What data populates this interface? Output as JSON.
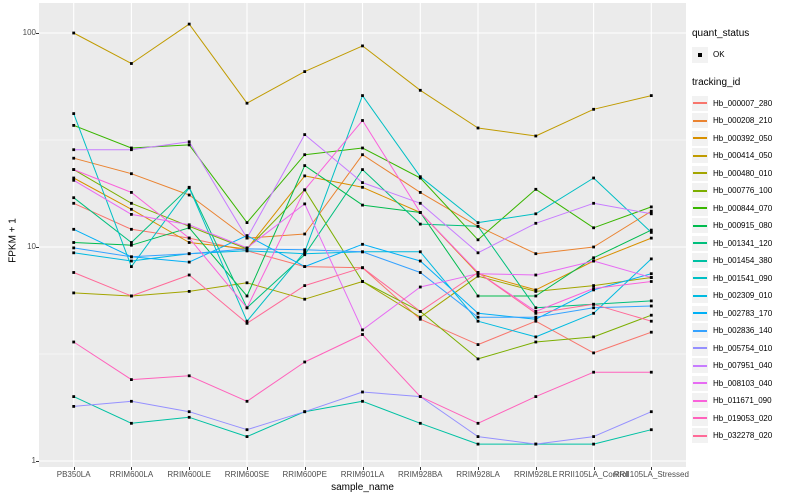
{
  "chart_data": {
    "type": "line",
    "title": "",
    "xlabel": "sample_name",
    "ylabel": "FPKM + 1",
    "y_scale": "log10",
    "y_ticks": [
      1,
      10,
      100
    ],
    "y_minor_ticks": [
      3.162,
      31.62
    ],
    "ylim_log10": [
      -0.03,
      2.14
    ],
    "grid": "white major+minor on gray panel",
    "legend_position": "right",
    "marker": "small black square on every point",
    "categories": [
      "PB350LA",
      "RRIM600LA",
      "RRIM600LE",
      "RRIM600SE",
      "RRIM600PE",
      "RRIM901LA",
      "RRIM928BA",
      "RRIM928LA",
      "RRIM928LE",
      "RRII105LA_Control",
      "RRII105LA_Stressed"
    ],
    "series": [
      {
        "name": "Hb_000007_280",
        "color": "#F8766D",
        "values": [
          16.0,
          12.1,
          11.0,
          9.6,
          8.1,
          8.0,
          4.6,
          3.5,
          4.5,
          3.2,
          4.0
        ]
      },
      {
        "name": "Hb_000208_210",
        "color": "#EA8331",
        "values": [
          26.0,
          22.0,
          17.5,
          11.0,
          11.5,
          27.0,
          18.0,
          12.5,
          9.3,
          10.0,
          14.7
        ]
      },
      {
        "name": "Hb_000392_050",
        "color": "#D89000",
        "values": [
          21.0,
          15.0,
          10.5,
          9.8,
          21.5,
          19.0,
          14.5,
          7.5,
          6.3,
          8.6,
          11.0
        ]
      },
      {
        "name": "Hb_000414_050",
        "color": "#C09B00",
        "values": [
          100,
          72,
          110,
          47,
          66,
          87,
          54,
          36,
          33,
          44,
          51
        ]
      },
      {
        "name": "Hb_000480_010",
        "color": "#A3A500",
        "values": [
          6.1,
          5.9,
          6.2,
          6.8,
          5.7,
          6.9,
          4.7,
          7.3,
          6.2,
          6.6,
          7.2
        ]
      },
      {
        "name": "Hb_000776_100",
        "color": "#7CAE00",
        "values": [
          23.0,
          16.0,
          12.5,
          9.8,
          18.5,
          6.9,
          5.0,
          3.0,
          3.6,
          3.8,
          4.8
        ]
      },
      {
        "name": "Hb_000844_070",
        "color": "#39B600",
        "values": [
          37.0,
          29.0,
          30.0,
          13.0,
          27.0,
          29.0,
          21.0,
          10.8,
          18.6,
          12.3,
          15.4
        ]
      },
      {
        "name": "Hb_000915_080",
        "color": "#00BB4E",
        "values": [
          10.5,
          10.2,
          12.3,
          5.9,
          24.0,
          15.7,
          14.5,
          5.9,
          5.9,
          8.9,
          12.0
        ]
      },
      {
        "name": "Hb_001341_120",
        "color": "#00BF7D",
        "values": [
          17.0,
          10.5,
          19.0,
          5.2,
          9.2,
          23.0,
          12.8,
          12.5,
          5.2,
          5.4,
          5.6
        ]
      },
      {
        "name": "Hb_001454_380",
        "color": "#00C1A3",
        "values": [
          2.0,
          1.5,
          1.6,
          1.3,
          1.7,
          1.9,
          1.5,
          1.2,
          1.2,
          1.2,
          1.4
        ]
      },
      {
        "name": "Hb_001541_090",
        "color": "#00BFC4",
        "values": [
          42.0,
          8.1,
          18.9,
          4.5,
          9.5,
          51.0,
          21.3,
          13.0,
          14.3,
          21.0,
          11.7
        ]
      },
      {
        "name": "Hb_002309_010",
        "color": "#00BAE0",
        "values": [
          9.4,
          8.6,
          9.3,
          9.6,
          9.3,
          9.5,
          9.5,
          4.5,
          3.8,
          4.9,
          8.8
        ]
      },
      {
        "name": "Hb_002783_170",
        "color": "#00B0F6",
        "values": [
          12.1,
          9.0,
          8.5,
          11.3,
          8.1,
          10.3,
          8.6,
          4.9,
          4.6,
          6.3,
          7.5
        ]
      },
      {
        "name": "Hb_002836_140",
        "color": "#35A2FF",
        "values": [
          9.9,
          9.0,
          9.3,
          9.8,
          9.7,
          9.5,
          7.6,
          4.7,
          4.7,
          5.2,
          5.3
        ]
      },
      {
        "name": "Hb_005754_010",
        "color": "#9590FF",
        "values": [
          1.8,
          1.9,
          1.7,
          1.4,
          1.7,
          2.1,
          2.0,
          1.3,
          1.2,
          1.3,
          1.7
        ]
      },
      {
        "name": "Hb_007951_040",
        "color": "#C77CFF",
        "values": [
          28.5,
          28.5,
          31.0,
          11.0,
          33.5,
          20.0,
          16.0,
          9.4,
          12.9,
          16.0,
          14.3
        ]
      },
      {
        "name": "Hb_008103_040",
        "color": "#E76BF3",
        "values": [
          20.5,
          14.2,
          12.7,
          9.9,
          15.9,
          4.1,
          6.5,
          7.5,
          7.4,
          8.6,
          7.2
        ]
      },
      {
        "name": "Hb_011671_090",
        "color": "#FA62DB",
        "values": [
          23.0,
          18.0,
          11.0,
          5.2,
          18.5,
          39.0,
          14.5,
          7.6,
          5.0,
          6.4,
          6.9
        ]
      },
      {
        "name": "Hb_019053_020",
        "color": "#FF62BC",
        "values": [
          3.6,
          2.4,
          2.5,
          1.9,
          2.9,
          3.9,
          2.0,
          1.5,
          2.0,
          2.6,
          2.6
        ]
      },
      {
        "name": "Hb_032278_020",
        "color": "#FF6A98",
        "values": [
          7.6,
          5.9,
          7.4,
          4.4,
          6.6,
          8.0,
          5.0,
          7.6,
          4.9,
          5.4,
          4.5
        ]
      }
    ]
  },
  "axis": {
    "x_title": "sample_name",
    "y_title": "FPKM + 1",
    "y_tick_labels": [
      "100",
      "10",
      "1"
    ]
  },
  "legend": {
    "quant_status": {
      "title": "quant_status",
      "ok_label": "OK",
      "marker": "black-square-point"
    },
    "tracking_id": {
      "title": "tracking_id"
    }
  },
  "colors": {
    "panel_bg": "#EBEBEB",
    "grid": "#FFFFFF",
    "tick_text": "#4D4D4D",
    "axis_text": "#000000",
    "legend_key_bg": "#F2F2F2",
    "point": "#000000"
  }
}
